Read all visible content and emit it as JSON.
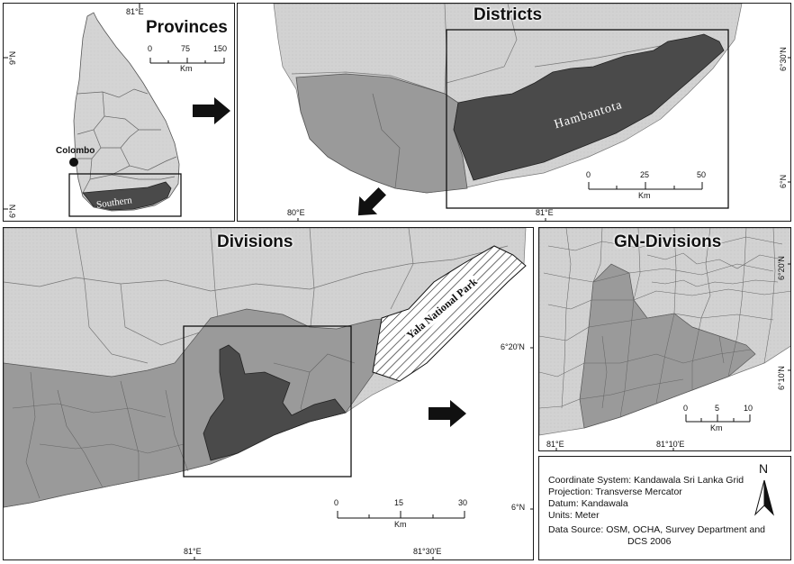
{
  "panels": {
    "provinces": {
      "title": "Provinces",
      "lon_tick": "81°E",
      "lat_ticks": [
        "9°N",
        "6°N"
      ],
      "scale_ticks": [
        "0",
        "75",
        "150"
      ],
      "scale_unit": "Km",
      "city_label": "Colombo",
      "region_label": "Southern"
    },
    "districts": {
      "title": "Districts",
      "lon_ticks": [
        "80°E",
        "81°E"
      ],
      "lat_ticks": [
        "6°30'N",
        "6°N"
      ],
      "scale_ticks": [
        "0",
        "25",
        "50"
      ],
      "scale_unit": "Km",
      "region_label": "Hambantota"
    },
    "divisions": {
      "title": "Divisions",
      "lon_ticks": [
        "81°E",
        "81°30'E"
      ],
      "lat_ticks": [
        "6°20'N",
        "6°N"
      ],
      "scale_ticks": [
        "0",
        "15",
        "30"
      ],
      "scale_unit": "Km",
      "park_label": "Yala National Park"
    },
    "gn": {
      "title": "GN-Divisions",
      "lon_ticks": [
        "81°E",
        "81°10'E"
      ],
      "lat_ticks": [
        "6°20'N",
        "6°10'N"
      ],
      "scale_ticks": [
        "0",
        "5",
        "10"
      ],
      "scale_unit": "Km"
    }
  },
  "info": {
    "coordinate_system": "Coordinate System: Kandawala Sri Lanka Grid",
    "projection": "Projection: Transverse Mercator",
    "datum": "Datum: Kandawala",
    "units": "Units: Meter",
    "source_line1": "Data Source: OSM, OCHA, Survey Department and",
    "source_line2": "DCS 2006",
    "north_label": "N"
  },
  "colors": {
    "land": "#d2d2d2",
    "region_mid": "#9a9a9a",
    "region_dark": "#4a4a4a",
    "border": "#1a1a1a"
  }
}
